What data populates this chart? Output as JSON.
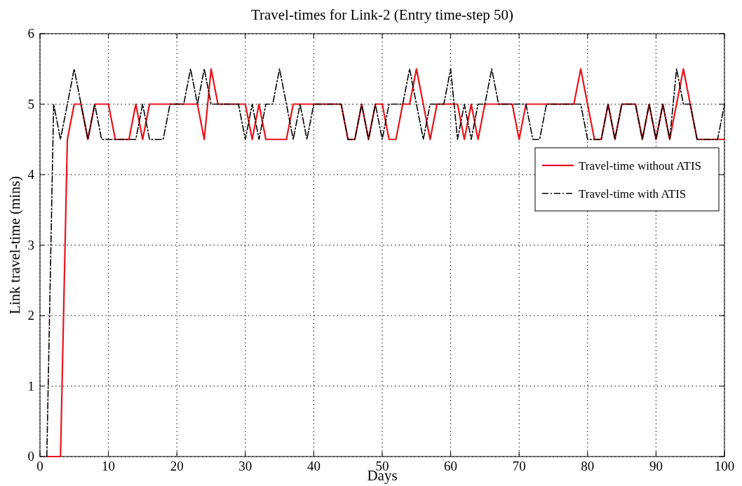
{
  "chart_data": {
    "type": "line",
    "title": "Travel-times for Link-2 (Entry time-step 50)",
    "xlabel": "Days",
    "ylabel": "Link travel-time (mins)",
    "x": [
      1,
      2,
      3,
      4,
      5,
      6,
      7,
      8,
      9,
      10,
      11,
      12,
      13,
      14,
      15,
      16,
      17,
      18,
      19,
      20,
      21,
      22,
      23,
      24,
      25,
      26,
      27,
      28,
      29,
      30,
      31,
      32,
      33,
      34,
      35,
      36,
      37,
      38,
      39,
      40,
      41,
      42,
      43,
      44,
      45,
      46,
      47,
      48,
      49,
      50,
      51,
      52,
      53,
      54,
      55,
      56,
      57,
      58,
      59,
      60,
      61,
      62,
      63,
      64,
      65,
      66,
      67,
      68,
      69,
      70,
      71,
      72,
      73,
      74,
      75,
      76,
      77,
      78,
      79,
      80,
      81,
      82,
      83,
      84,
      85,
      86,
      87,
      88,
      89,
      90,
      91,
      92,
      93,
      94,
      95,
      96,
      97,
      98,
      99,
      100
    ],
    "series": [
      {
        "name": "Travel-time without ATIS",
        "color": "#e8141c",
        "line_style": "solid",
        "values": [
          0,
          0,
          0,
          4.5,
          5,
          5,
          4.5,
          5,
          5,
          5,
          4.5,
          4.5,
          4.5,
          5,
          4.5,
          5,
          5,
          5,
          5,
          5,
          5,
          5,
          5,
          4.5,
          5.5,
          5,
          5,
          5,
          5,
          5,
          4.5,
          5,
          4.5,
          4.5,
          4.5,
          4.5,
          5,
          5,
          5,
          5,
          5,
          5,
          5,
          5,
          4.5,
          4.5,
          5,
          4.5,
          5,
          5,
          4.5,
          4.5,
          5,
          5,
          5.5,
          5,
          4.5,
          5,
          5,
          5,
          5,
          4.5,
          5,
          4.5,
          5,
          5,
          5,
          5,
          5,
          4.5,
          5,
          5,
          5,
          5,
          5,
          5,
          5,
          5,
          5.5,
          5,
          4.5,
          4.5,
          5,
          4.5,
          5,
          5,
          5,
          4.5,
          5,
          4.5,
          5,
          4.5,
          5,
          5.5,
          5,
          4.5,
          4.5,
          4.5,
          4.5,
          4.5
        ]
      },
      {
        "name": "Travel-time with ATIS",
        "color": "#000000",
        "line_style": "dashdot",
        "values": [
          0,
          5,
          4.5,
          5,
          5.5,
          5,
          4.5,
          5,
          4.5,
          4.5,
          4.5,
          4.5,
          4.5,
          4.5,
          5,
          4.5,
          4.5,
          4.5,
          5,
          5,
          5,
          5.5,
          5,
          5.5,
          5,
          5,
          5,
          5,
          5,
          4.5,
          5,
          4.5,
          5,
          5,
          5.5,
          5,
          4.5,
          5,
          4.5,
          5,
          5,
          5,
          5,
          5,
          4.5,
          4.5,
          5,
          4.5,
          5,
          4.5,
          5,
          5,
          5,
          5.5,
          5,
          4.5,
          5,
          5,
          5,
          5.5,
          4.5,
          5,
          4.5,
          5,
          5,
          5.5,
          5,
          5,
          5,
          5,
          5,
          4.5,
          4.5,
          5,
          5,
          5,
          5,
          5,
          5,
          4.5,
          4.5,
          4.5,
          5,
          4.5,
          5,
          5,
          5,
          4.5,
          5,
          4.5,
          5,
          4.5,
          5.5,
          5,
          5,
          4.5,
          4.5,
          4.5,
          4.5,
          5
        ]
      }
    ],
    "xlim": [
      0,
      100
    ],
    "xticks": [
      0,
      10,
      20,
      30,
      40,
      50,
      60,
      70,
      80,
      90,
      100
    ],
    "ylim": [
      0,
      6
    ],
    "yticks": [
      0,
      1,
      2,
      3,
      4,
      5,
      6
    ],
    "grid": true,
    "legend": "right"
  }
}
